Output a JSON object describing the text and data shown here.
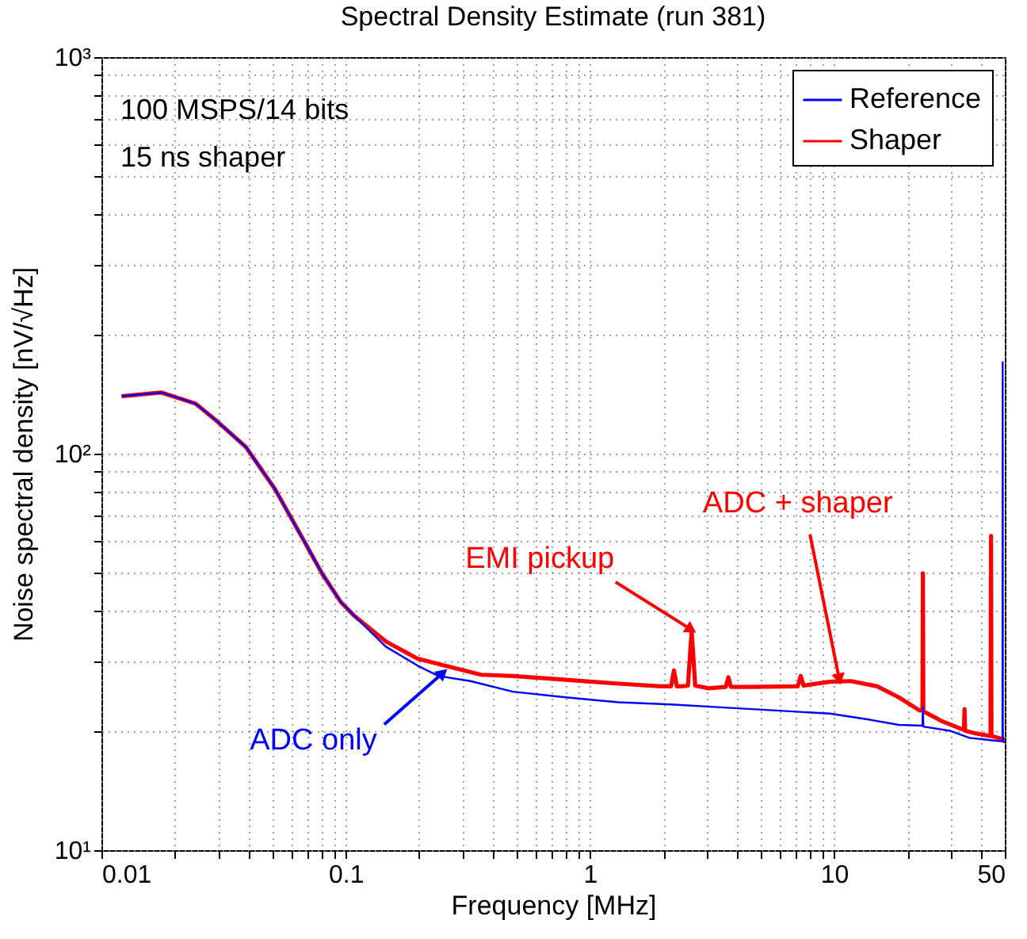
{
  "chart_data": {
    "type": "line",
    "title": "Spectral Density Estimate (run 381)",
    "xlabel": "Frequency [MHz]",
    "ylabel": "Noise spectral density [nV/√Hz]",
    "log": "xy",
    "grid": true,
    "legend": "top right",
    "marker": "none",
    "line_style": "solid",
    "xlim": [
      0.01,
      50
    ],
    "ylim": [
      10,
      1000
    ],
    "xticks": [
      0.01,
      {
        "value": 0.02,
        "label": null
      },
      {
        "value": 0.03,
        "label": null
      },
      {
        "value": 0.04,
        "label": null
      },
      {
        "value": 0.05,
        "label": null
      },
      {
        "value": 0.06,
        "label": null
      },
      {
        "value": 0.07,
        "label": null
      },
      {
        "value": 0.08,
        "label": null
      },
      {
        "value": 0.09,
        "label": null
      },
      0.1,
      {
        "value": 0.2,
        "label": null
      },
      {
        "value": 0.3,
        "label": null
      },
      {
        "value": 0.4,
        "label": null
      },
      {
        "value": 0.5,
        "label": null
      },
      {
        "value": 0.6,
        "label": null
      },
      {
        "value": 0.7,
        "label": null
      },
      {
        "value": 0.8,
        "label": null
      },
      {
        "value": 0.9,
        "label": null
      },
      1,
      {
        "value": 2,
        "label": null
      },
      {
        "value": 3,
        "label": null
      },
      {
        "value": 4,
        "label": null
      },
      {
        "value": 5,
        "label": null
      },
      {
        "value": 6,
        "label": null
      },
      {
        "value": 7,
        "label": null
      },
      {
        "value": 8,
        "label": null
      },
      {
        "value": 9,
        "label": null
      },
      10,
      {
        "value": 20,
        "label": null
      },
      {
        "value": 30,
        "label": null
      },
      {
        "value": 40,
        "label": null
      },
      50
    ],
    "yticks": [
      {
        "value": 10,
        "label": "10¹"
      },
      {
        "value": 20,
        "label": null
      },
      {
        "value": 30,
        "label": null
      },
      {
        "value": 40,
        "label": null
      },
      {
        "value": 50,
        "label": null
      },
      {
        "value": 60,
        "label": null
      },
      {
        "value": 70,
        "label": null
      },
      {
        "value": 80,
        "label": null
      },
      {
        "value": 90,
        "label": null
      },
      {
        "value": 100,
        "label": "10²"
      },
      {
        "value": 200,
        "label": null
      },
      {
        "value": 300,
        "label": null
      },
      {
        "value": 400,
        "label": null
      },
      {
        "value": 500,
        "label": null
      },
      {
        "value": 600,
        "label": null
      },
      {
        "value": 700,
        "label": null
      },
      {
        "value": 800,
        "label": null
      },
      {
        "value": 900,
        "label": null
      },
      {
        "value": 1000,
        "label": "10³"
      }
    ],
    "series": [
      {
        "name": "Reference",
        "color": "#0000ff",
        "x": [
          0.0121,
          0.0176,
          0.0243,
          0.0296,
          0.039,
          0.0513,
          0.0658,
          0.08,
          0.0957,
          0.108,
          0.146,
          0.197,
          0.24,
          0.324,
          0.483,
          0.796,
          1.31,
          2.15,
          3.54,
          5.8,
          9.6,
          14.2,
          18.4,
          23.0,
          23.1,
          23.2,
          29.8,
          35.8,
          45.1,
          48.9,
          49,
          49.1,
          50
        ],
        "values": [
          139.6,
          142.6,
          133.7,
          121,
          104,
          81.5,
          62,
          49.9,
          42.2,
          39.1,
          32.6,
          29.2,
          27.5,
          26.7,
          25.1,
          24.3,
          23.6,
          23.3,
          22.9,
          22.5,
          22.1,
          21.3,
          20.7,
          20.6,
          22.9,
          20.5,
          20.0,
          19.2,
          18.9,
          18.8,
          170,
          18.8,
          18.7
        ]
      },
      {
        "name": "Shaper",
        "color": "#ff0000",
        "x": [
          0.0121,
          0.0176,
          0.0243,
          0.0296,
          0.039,
          0.0513,
          0.0658,
          0.08,
          0.0957,
          0.108,
          0.146,
          0.197,
          0.266,
          0.358,
          0.483,
          0.796,
          1.31,
          1.95,
          2.15,
          2.21,
          2.27,
          2.38,
          2.52,
          2.61,
          2.7,
          3.06,
          3.6,
          3.69,
          3.78,
          4.55,
          7.1,
          7.3,
          7.5,
          9.6,
          11.7,
          15.0,
          18.4,
          22.4,
          23.0,
          23.1,
          23.2,
          27.4,
          34.0,
          34.2,
          34.4,
          38,
          43.7,
          43.9,
          44.1,
          50
        ],
        "values": [
          139.6,
          142.6,
          133.7,
          121,
          104,
          81.5,
          62,
          49.9,
          42.2,
          39.1,
          33.6,
          30.4,
          29.0,
          27.7,
          27.5,
          26.9,
          26.3,
          25.9,
          25.9,
          28.4,
          25.9,
          25.9,
          26.0,
          35.7,
          26.0,
          25.6,
          25.8,
          27.3,
          25.8,
          25.8,
          25.9,
          27.5,
          26.0,
          26.6,
          26.7,
          25.9,
          24.3,
          22.5,
          22.6,
          49.9,
          22.4,
          21.2,
          20.1,
          22.7,
          20.0,
          19.7,
          19.4,
          62,
          19.4,
          19.0
        ]
      }
    ],
    "annotations": [
      "100 MSPS/14 bits",
      "15 ns shaper",
      {
        "text": "EMI pickup",
        "x": 2.6,
        "y": 36
      },
      {
        "text": "ADC + shaper",
        "x": 10.5,
        "y": 27
      },
      {
        "text": "ADC only",
        "x": 0.25,
        "y": 28
      }
    ]
  }
}
